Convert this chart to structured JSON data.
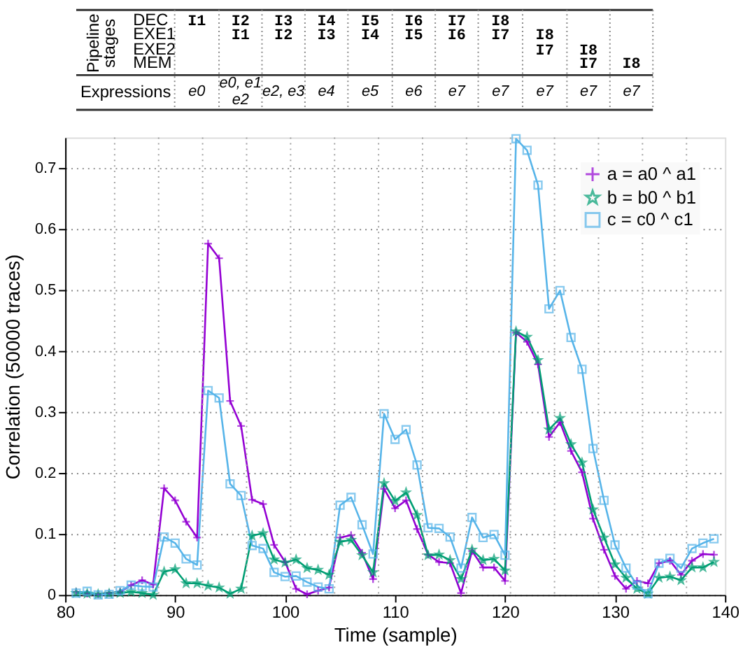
{
  "chart_data": {
    "type": "line",
    "xlabel": "Time (sample)",
    "ylabel": "Correlation (50000 traces)",
    "x": [
      81,
      82,
      83,
      84,
      85,
      86,
      87,
      88,
      89,
      90,
      91,
      92,
      93,
      94,
      95,
      96,
      97,
      98,
      99,
      100,
      101,
      102,
      103,
      104,
      105,
      106,
      107,
      108,
      109,
      110,
      111,
      112,
      113,
      114,
      115,
      116,
      117,
      118,
      119,
      120,
      121,
      122,
      123,
      124,
      125,
      126,
      127,
      128,
      129,
      130,
      131,
      132,
      133,
      134,
      135,
      136,
      137,
      138,
      139
    ],
    "xlim": [
      80,
      140
    ],
    "xticks": [
      80,
      90,
      100,
      110,
      120,
      130,
      140
    ],
    "ylim": [
      0,
      0.75
    ],
    "yticks": [
      0,
      0.1,
      0.2,
      0.3,
      0.4,
      0.5,
      0.6,
      0.7
    ],
    "grid": "y",
    "legend": "top right",
    "line_style": "solid",
    "series": [
      {
        "name": "a = a0 ^ a1",
        "color": "#9400d3",
        "marker": "cross",
        "values": [
          0.005,
          0.002,
          0.001,
          0.003,
          0.005,
          0.016,
          0.024,
          0.017,
          0.175,
          0.155,
          0.12,
          0.094,
          0.576,
          0.552,
          0.318,
          0.277,
          0.156,
          0.149,
          0.082,
          0.054,
          0.01,
          0.001,
          0.007,
          0.012,
          0.094,
          0.098,
          0.069,
          0.026,
          0.174,
          0.142,
          0.155,
          0.108,
          0.066,
          0.054,
          0.052,
          0.003,
          0.072,
          0.045,
          0.045,
          0.023,
          0.43,
          0.415,
          0.378,
          0.259,
          0.283,
          0.236,
          0.201,
          0.125,
          0.074,
          0.031,
          0.01,
          0.023,
          0.019,
          0.052,
          0.056,
          0.033,
          0.056,
          0.067,
          0.066
        ]
      },
      {
        "name": "b = b0 ^ b1",
        "color": "#009e73",
        "marker": "star",
        "values": [
          0.003,
          0.002,
          0.001,
          0.002,
          0.003,
          0.005,
          0.003,
          0.0,
          0.038,
          0.042,
          0.019,
          0.019,
          0.015,
          0.012,
          0.002,
          0.01,
          0.097,
          0.101,
          0.058,
          0.053,
          0.058,
          0.044,
          0.041,
          0.033,
          0.087,
          0.09,
          0.065,
          0.037,
          0.183,
          0.154,
          0.168,
          0.131,
          0.065,
          0.066,
          0.057,
          0.026,
          0.074,
          0.057,
          0.059,
          0.04,
          0.432,
          0.423,
          0.385,
          0.271,
          0.29,
          0.247,
          0.217,
          0.14,
          0.094,
          0.05,
          0.028,
          0.01,
          0.002,
          0.028,
          0.03,
          0.024,
          0.045,
          0.045,
          0.054
        ]
      },
      {
        "name": "c = c0 ^ c1",
        "color": "#56b4e9",
        "marker": "square",
        "values": [
          0.003,
          0.006,
          0.0,
          0.001,
          0.007,
          0.016,
          0.014,
          0.013,
          0.095,
          0.085,
          0.059,
          0.049,
          0.335,
          0.323,
          0.182,
          0.163,
          0.081,
          0.076,
          0.037,
          0.03,
          0.031,
          0.021,
          0.013,
          0.01,
          0.147,
          0.16,
          0.115,
          0.067,
          0.297,
          0.255,
          0.271,
          0.213,
          0.11,
          0.109,
          0.095,
          0.044,
          0.127,
          0.094,
          0.099,
          0.065,
          0.748,
          0.729,
          0.672,
          0.469,
          0.499,
          0.422,
          0.37,
          0.24,
          0.155,
          0.082,
          0.044,
          0.016,
          0.002,
          0.052,
          0.06,
          0.044,
          0.076,
          0.085,
          0.092
        ]
      }
    ],
    "ref_lines": [
      {
        "axis": "x",
        "value": 84.5,
        "color": "#a0a0a0",
        "line_style": "dotted"
      },
      {
        "axis": "x",
        "value": 88.5,
        "color": "#a0a0a0",
        "line_style": "dotted"
      },
      {
        "axis": "x",
        "value": 92.5,
        "color": "#a0a0a0",
        "line_style": "dotted"
      },
      {
        "axis": "x",
        "value": 96.5,
        "color": "#a0a0a0",
        "line_style": "dotted"
      },
      {
        "axis": "x",
        "value": 100.5,
        "color": "#a0a0a0",
        "line_style": "dotted"
      },
      {
        "axis": "x",
        "value": 104.5,
        "color": "#a0a0a0",
        "line_style": "dotted"
      },
      {
        "axis": "x",
        "value": 108.5,
        "color": "#a0a0a0",
        "line_style": "dotted"
      },
      {
        "axis": "x",
        "value": 112.5,
        "color": "#a0a0a0",
        "line_style": "dotted"
      },
      {
        "axis": "x",
        "value": 116.5,
        "color": "#a0a0a0",
        "line_style": "dotted"
      },
      {
        "axis": "x",
        "value": 120.5,
        "color": "#a0a0a0",
        "line_style": "dotted"
      },
      {
        "axis": "x",
        "value": 124.5,
        "color": "#a0a0a0",
        "line_style": "dotted"
      },
      {
        "axis": "x",
        "value": 128.5,
        "color": "#a0a0a0",
        "line_style": "dotted"
      },
      {
        "axis": "x",
        "value": 132.5,
        "color": "#a0a0a0",
        "line_style": "dotted"
      },
      {
        "axis": "x",
        "value": 136.5,
        "color": "#a0a0a0",
        "line_style": "dotted"
      }
    ],
    "annotations": [
      "Pipeline\nstages",
      "DEC",
      "EXE1",
      "EXE2",
      "MEM",
      "Expressions",
      "I1",
      "I2",
      "I1",
      "I3",
      "I2",
      "I4",
      "I3",
      "I5",
      "I4",
      "I6",
      "I5",
      "I7",
      "I6",
      "I8",
      "I7",
      "I8",
      "I7",
      "I8",
      "I7",
      "I8",
      "e0",
      "e0, e1\ne2",
      "e2, e3",
      "e4",
      "e5",
      "e6",
      "e7",
      "e7",
      "e7",
      "e7",
      "e7"
    ]
  }
}
